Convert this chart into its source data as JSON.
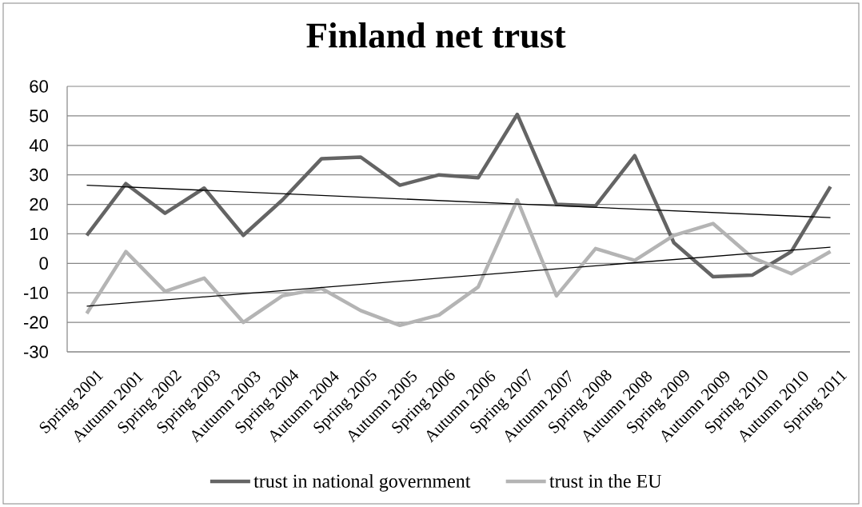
{
  "chart_data": {
    "type": "line",
    "title": "Finland net trust",
    "categories": [
      "Spring 2001",
      "Autumn 2001",
      "Spring 2002",
      "Spring 2003",
      "Autumn 2003",
      "Spring 2004",
      "Autumn 2004",
      "Spring 2005",
      "Autumn 2005",
      "Spring 2006",
      "Autumn 2006",
      "Spring 2007",
      "Autumn 2007",
      "Spring 2008",
      "Autumn 2008",
      "Spring 2009",
      "Autumn 2009",
      "Spring 2010",
      "Autumn 2010",
      "Spring 2011"
    ],
    "series": [
      {
        "name": "trust in national government",
        "color": "#646464",
        "values": [
          9.5,
          27,
          17,
          25.5,
          9.5,
          21.5,
          35.5,
          36,
          26.5,
          30,
          29,
          50.5,
          20,
          19.5,
          36.5,
          7,
          -4.5,
          -4,
          4,
          26
        ]
      },
      {
        "name": "trust in the EU",
        "color": "#b4b4b4",
        "values": [
          -17,
          4,
          -9.5,
          -5,
          -20,
          -11,
          -8.5,
          -16,
          -21,
          -17.5,
          -8,
          21.5,
          -11,
          5,
          1,
          9.5,
          13.5,
          2,
          -3.5,
          4
        ]
      },
      {
        "type": "line",
        "color": "#000000",
        "x": [
          "Spring 2001",
          "Spring 2011"
        ],
        "values": [
          26.5,
          15.5
        ]
      },
      {
        "type": "line",
        "color": "#000000",
        "x": [
          "Spring 2001",
          "Spring 2011"
        ],
        "values": [
          -14.5,
          5.5
        ]
      }
    ],
    "ylim": [
      -30,
      60
    ],
    "yticks": [
      -30,
      -20,
      -10,
      0,
      10,
      20,
      30,
      40,
      50,
      60
    ],
    "grid": "y",
    "legend": "bottom",
    "marker": "none",
    "line_style": "solid"
  }
}
